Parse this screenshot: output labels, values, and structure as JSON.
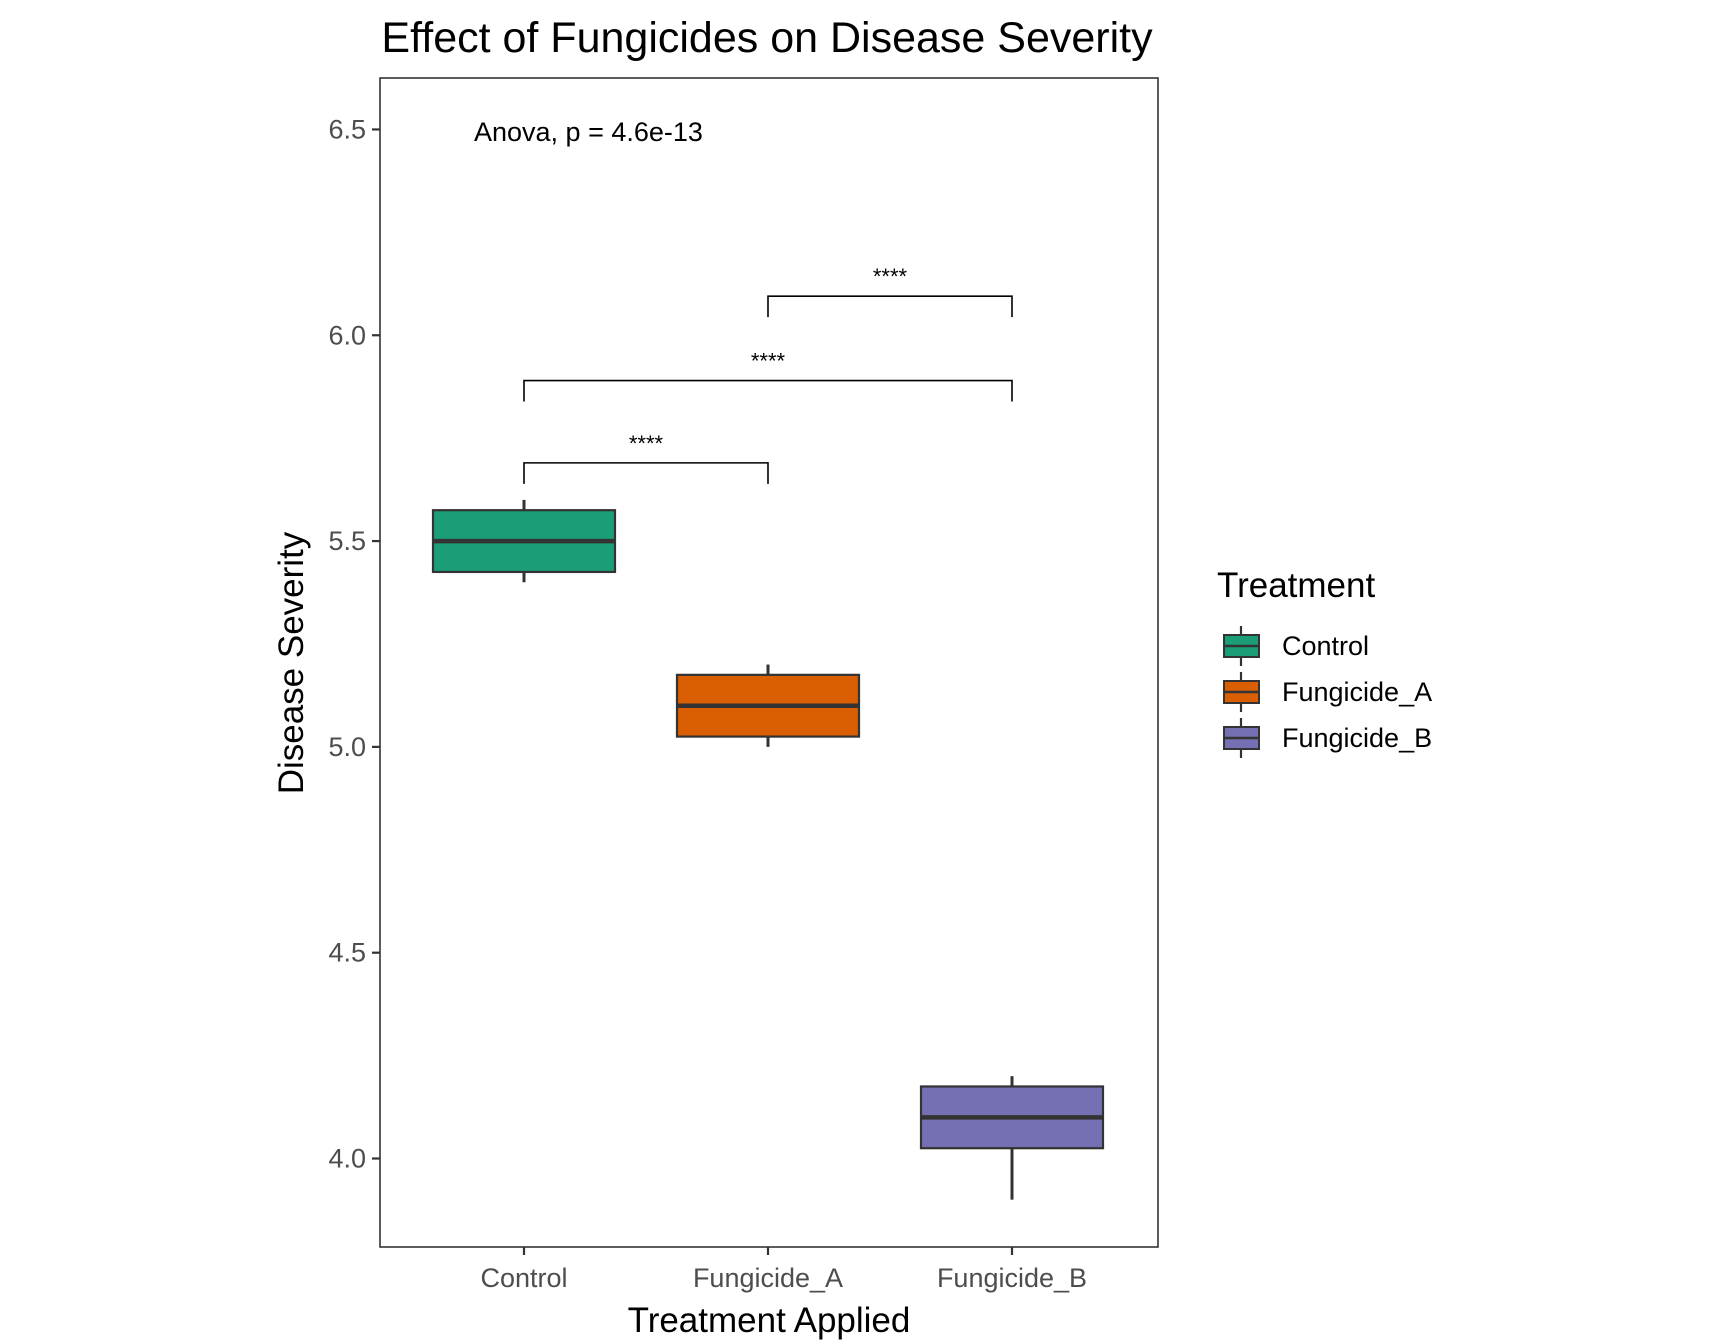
{
  "chart_data": {
    "type": "box",
    "title": "Effect of Fungicides on Disease Severity",
    "xlabel": "Treatment Applied",
    "ylabel": "Disease Severity",
    "categories": [
      "Control",
      "Fungicide_A",
      "Fungicide_B"
    ],
    "ylim": [
      3.785,
      6.625
    ],
    "yticks": [
      4.0,
      4.5,
      5.0,
      5.5,
      6.0,
      6.5
    ],
    "ytick_labels": [
      "4.0",
      "4.5",
      "5.0",
      "5.5",
      "6.0",
      "6.5"
    ],
    "boxes": [
      {
        "name": "Control",
        "min": 5.4,
        "q1": 5.425,
        "median": 5.5,
        "q3": 5.575,
        "max": 5.6,
        "color": "#1b9e77"
      },
      {
        "name": "Fungicide_A",
        "min": 5.0,
        "q1": 5.025,
        "median": 5.1,
        "q3": 5.175,
        "max": 5.2,
        "color": "#d95f02"
      },
      {
        "name": "Fungicide_B",
        "min": 3.9,
        "q1": 4.025,
        "median": 4.1,
        "q3": 4.175,
        "max": 4.2,
        "color": "#7570b3"
      }
    ],
    "annotation": "Anova, p = 4.6e-13",
    "significance": [
      {
        "from": "Control",
        "to": "Fungicide_A",
        "y": 5.69,
        "label": "****"
      },
      {
        "from": "Control",
        "to": "Fungicide_B",
        "y": 5.89,
        "label": "****"
      },
      {
        "from": "Fungicide_A",
        "to": "Fungicide_B",
        "y": 6.095,
        "label": "****"
      }
    ],
    "legend": {
      "title": "Treatment",
      "placement": "right",
      "entries": [
        "Control",
        "Fungicide_A",
        "Fungicide_B"
      ]
    },
    "grid": false
  }
}
